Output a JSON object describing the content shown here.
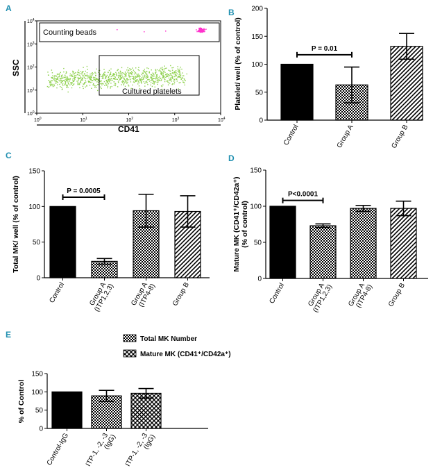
{
  "panel_letters": [
    "A",
    "B",
    "C",
    "D",
    "E"
  ],
  "colors": {
    "panel_letter": "#1f8fb0",
    "green_dots": "#8fd14f",
    "magenta_dots": "#ff33cc"
  },
  "panelA": {
    "gate_beads": "Counting beads",
    "gate_platelets": "Cultured platelets",
    "xlabel": "CD41",
    "ylabel": "SSC",
    "tick_base": "10",
    "xticks_exp": [
      "0",
      "1",
      "2",
      "3",
      "4"
    ],
    "yticks_exp": [
      "0",
      "1",
      "2",
      "3",
      "4"
    ]
  },
  "chart_data": [
    {
      "id": "B",
      "type": "bar",
      "categories": [
        "Control",
        "Group A",
        "Group B"
      ],
      "values": [
        100,
        63,
        132
      ],
      "errors": [
        0,
        32,
        23
      ],
      "patterns": [
        "solid",
        "cross",
        "diag"
      ],
      "ylabel": "Platelet/ well (% of control)",
      "ylim": [
        0,
        200
      ],
      "yticks": [
        "0",
        "50",
        "100",
        "150",
        "200"
      ],
      "annotation": {
        "text": "P = 0.01",
        "from": 0,
        "to": 1,
        "y": 117
      }
    },
    {
      "id": "C",
      "type": "bar",
      "categories": [
        [
          "Control"
        ],
        [
          "Group A",
          "(ITP1,2,3)"
        ],
        [
          "Group A",
          "(ITP4-8)"
        ],
        [
          "Group B"
        ]
      ],
      "values": [
        100,
        23,
        94,
        93
      ],
      "errors": [
        0,
        4,
        23,
        22
      ],
      "patterns": [
        "solid",
        "cross",
        "cross",
        "diag"
      ],
      "ylabel": "Total MK/ well (% of control)",
      "ylim": [
        0,
        150
      ],
      "yticks": [
        "0",
        "50",
        "100",
        "150"
      ],
      "annotation": {
        "text": "P = 0.0005",
        "from": 0,
        "to": 1,
        "y": 113
      }
    },
    {
      "id": "D",
      "type": "bar",
      "categories": [
        [
          "Control"
        ],
        [
          "Group A",
          "(ITP1,2,3)"
        ],
        [
          "Group A",
          "(ITP4-8)"
        ],
        [
          "Group B"
        ]
      ],
      "values": [
        100,
        73,
        97,
        97
      ],
      "errors": [
        0,
        2.5,
        4,
        10
      ],
      "patterns": [
        "solid",
        "cross",
        "cross",
        "diag"
      ],
      "ylabel": "Mature MK (CD41⁺/CD42a⁺)",
      "ylabel2": "(% of control)",
      "ylim": [
        0,
        150
      ],
      "yticks": [
        "0",
        "50",
        "100",
        "150"
      ],
      "annotation": {
        "text": "P<0.0001",
        "from": 0,
        "to": 1,
        "y": 108
      }
    },
    {
      "id": "E",
      "type": "bar",
      "categories": [
        [
          "Control-IgG"
        ],
        [
          "ITP-1, -2, -3",
          "(IgG)"
        ],
        [
          "ITP-1, -2, -3",
          "(IgG)"
        ]
      ],
      "values": [
        100,
        89,
        96
      ],
      "errors": [
        0,
        15,
        13
      ],
      "patterns": [
        "solid",
        "cross",
        "xcross"
      ],
      "ylabel": "% of Control",
      "ylim": [
        0,
        150
      ],
      "yticks": [
        "0",
        "50",
        "100",
        "150"
      ],
      "legend": [
        {
          "label": "Total MK Number",
          "pattern": "cross"
        },
        {
          "label": "Mature MK (CD41⁺/CD42a⁺)",
          "pattern": "xcross"
        }
      ]
    }
  ]
}
